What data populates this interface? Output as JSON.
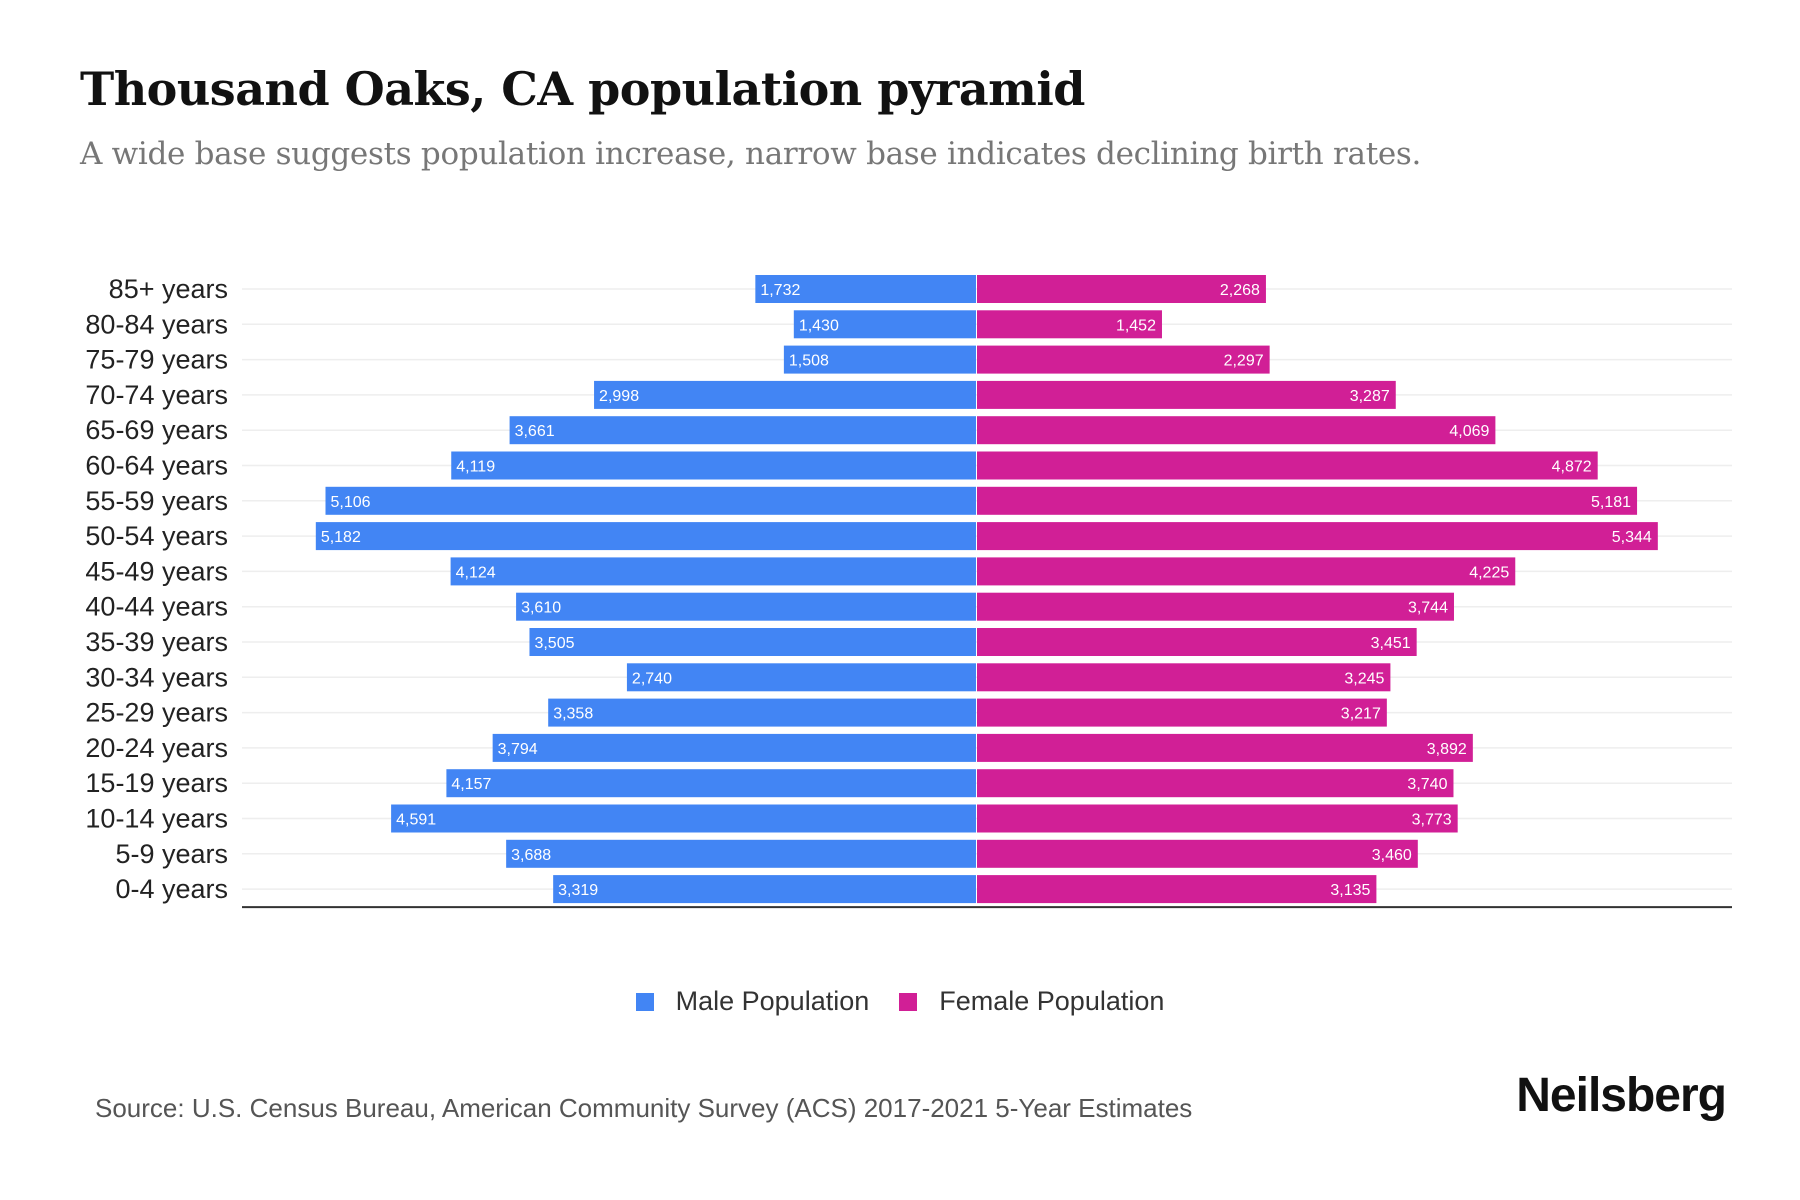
{
  "title": "Thousand Oaks, CA population pyramid",
  "subtitle": "A wide base suggests population increase, narrow base indicates declining birth rates.",
  "source": "Source: U.S. Census Bureau, American Community Survey (ACS) 2017-2021 5-Year Estimates",
  "logo": "Neilsberg",
  "colors": {
    "male": "#4285f4",
    "female": "#d11f96"
  },
  "chart_data": {
    "type": "bar",
    "orientation": "horizontal-pyramid",
    "title": "Thousand Oaks, CA population pyramid",
    "categories": [
      "85+ years",
      "80-84 years",
      "75-79 years",
      "70-74 years",
      "65-69 years",
      "60-64 years",
      "55-59 years",
      "50-54 years",
      "45-49 years",
      "40-44 years",
      "35-39 years",
      "30-34 years",
      "25-29 years",
      "20-24 years",
      "15-19 years",
      "10-14 years",
      "5-9 years",
      "0-4 years"
    ],
    "series": [
      {
        "name": "Male Population",
        "values": [
          1732,
          1430,
          1508,
          2998,
          3661,
          4119,
          5106,
          5182,
          4124,
          3610,
          3505,
          2740,
          3358,
          3794,
          4157,
          4591,
          3688,
          3319
        ]
      },
      {
        "name": "Female Population",
        "values": [
          2268,
          1452,
          2297,
          3287,
          4069,
          4872,
          5181,
          5344,
          4225,
          3744,
          3451,
          3245,
          3217,
          3892,
          3740,
          3773,
          3460,
          3135
        ]
      }
    ],
    "legend_position": "bottom-center",
    "grid": true
  }
}
